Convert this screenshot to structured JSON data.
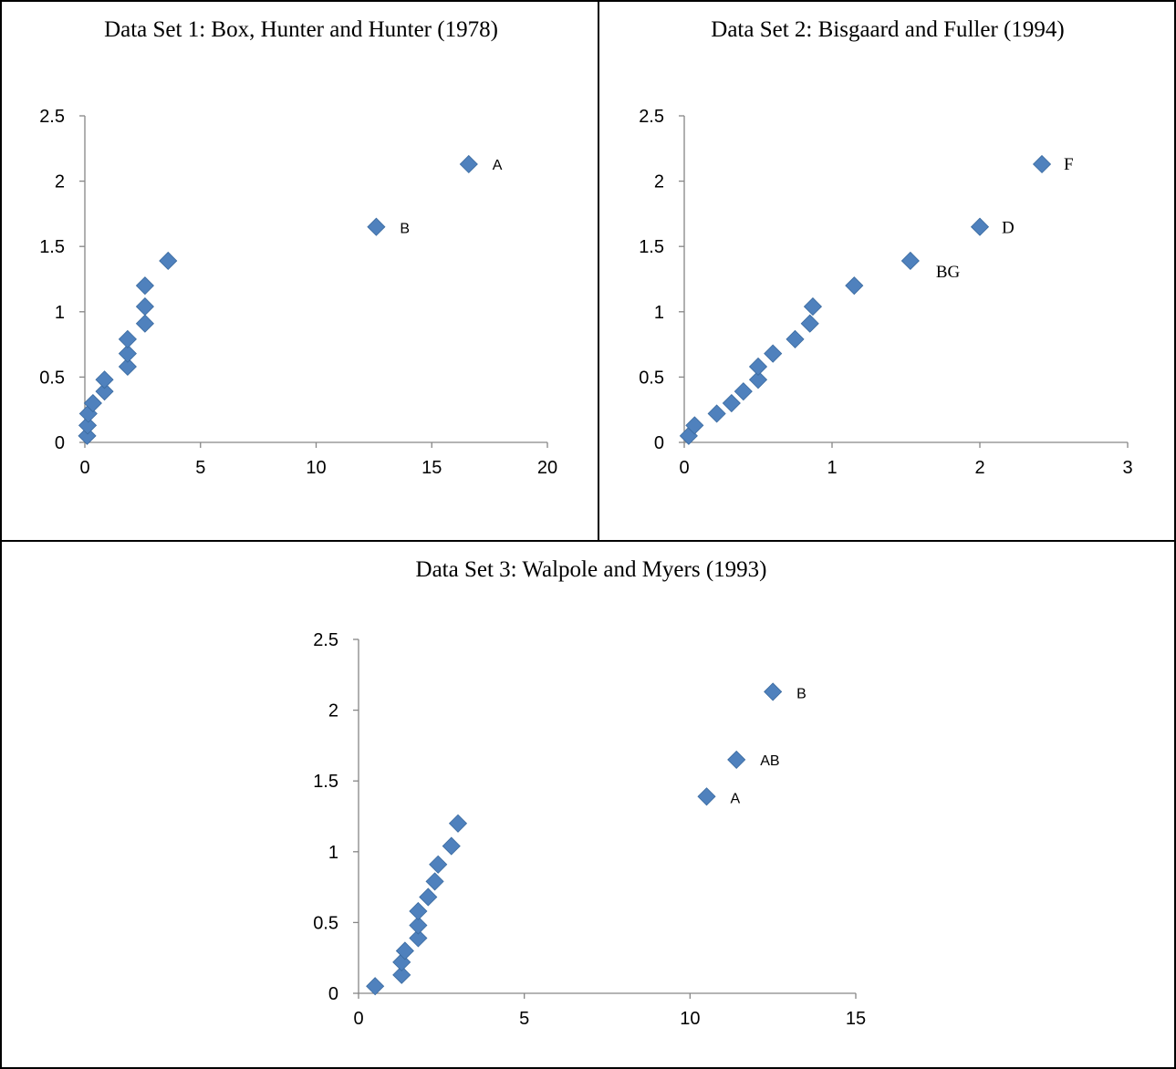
{
  "colors": {
    "marker": "#4F81BD",
    "marker_edge": "#3A6A9F",
    "axis": "#868686",
    "border": "#000000"
  },
  "chart_data": [
    {
      "type": "scatter",
      "title": "Data Set 1: Box, Hunter and Hunter (1978)",
      "xlabel": "",
      "ylabel": "",
      "xlim": [
        0,
        20
      ],
      "ylim": [
        0,
        2.5
      ],
      "x_ticks": [
        "0",
        "5",
        "10",
        "15",
        "20"
      ],
      "y_ticks": [
        "0",
        "0.5",
        "1",
        "1.5",
        "2",
        "2.5"
      ],
      "label_style": "sans",
      "points": [
        {
          "x": 0.1,
          "y": 0.05,
          "label": ""
        },
        {
          "x": 0.12,
          "y": 0.13,
          "label": ""
        },
        {
          "x": 0.15,
          "y": 0.22,
          "label": ""
        },
        {
          "x": 0.35,
          "y": 0.3,
          "label": ""
        },
        {
          "x": 0.85,
          "y": 0.39,
          "label": ""
        },
        {
          "x": 0.85,
          "y": 0.48,
          "label": ""
        },
        {
          "x": 1.85,
          "y": 0.58,
          "label": ""
        },
        {
          "x": 1.85,
          "y": 0.68,
          "label": ""
        },
        {
          "x": 1.85,
          "y": 0.79,
          "label": ""
        },
        {
          "x": 2.6,
          "y": 0.91,
          "label": ""
        },
        {
          "x": 2.6,
          "y": 1.04,
          "label": ""
        },
        {
          "x": 2.6,
          "y": 1.2,
          "label": ""
        },
        {
          "x": 3.6,
          "y": 1.39,
          "label": ""
        },
        {
          "x": 12.6,
          "y": 1.65,
          "label": "B"
        },
        {
          "x": 16.6,
          "y": 2.13,
          "label": "A"
        }
      ]
    },
    {
      "type": "scatter",
      "title": "Data Set 2: Bisgaard and Fuller (1994)",
      "xlabel": "",
      "ylabel": "",
      "xlim": [
        0,
        3
      ],
      "ylim": [
        0,
        2.5
      ],
      "x_ticks": [
        "0",
        "1",
        "2",
        "3"
      ],
      "y_ticks": [
        "0",
        "0.5",
        "1",
        "1.5",
        "2",
        "2.5"
      ],
      "label_style": "serif",
      "points": [
        {
          "x": 0.03,
          "y": 0.05,
          "label": ""
        },
        {
          "x": 0.07,
          "y": 0.13,
          "label": ""
        },
        {
          "x": 0.22,
          "y": 0.22,
          "label": ""
        },
        {
          "x": 0.32,
          "y": 0.3,
          "label": ""
        },
        {
          "x": 0.4,
          "y": 0.39,
          "label": ""
        },
        {
          "x": 0.5,
          "y": 0.48,
          "label": ""
        },
        {
          "x": 0.5,
          "y": 0.58,
          "label": ""
        },
        {
          "x": 0.6,
          "y": 0.68,
          "label": ""
        },
        {
          "x": 0.75,
          "y": 0.79,
          "label": ""
        },
        {
          "x": 0.85,
          "y": 0.91,
          "label": ""
        },
        {
          "x": 0.87,
          "y": 1.04,
          "label": ""
        },
        {
          "x": 1.15,
          "y": 1.2,
          "label": ""
        },
        {
          "x": 1.53,
          "y": 1.39,
          "label": "BG"
        },
        {
          "x": 2.0,
          "y": 1.65,
          "label": "D"
        },
        {
          "x": 2.42,
          "y": 2.13,
          "label": "F"
        }
      ]
    },
    {
      "type": "scatter",
      "title": "Data Set 3: Walpole and Myers (1993)",
      "xlabel": "",
      "ylabel": "",
      "xlim": [
        0,
        15
      ],
      "ylim": [
        0,
        2.5
      ],
      "x_ticks": [
        "0",
        "5",
        "10",
        "15"
      ],
      "y_ticks": [
        "0",
        "0.5",
        "1",
        "1.5",
        "2",
        "2.5"
      ],
      "label_style": "sans",
      "points": [
        {
          "x": 0.5,
          "y": 0.05,
          "label": ""
        },
        {
          "x": 1.3,
          "y": 0.13,
          "label": ""
        },
        {
          "x": 1.3,
          "y": 0.22,
          "label": ""
        },
        {
          "x": 1.4,
          "y": 0.3,
          "label": ""
        },
        {
          "x": 1.8,
          "y": 0.39,
          "label": ""
        },
        {
          "x": 1.8,
          "y": 0.48,
          "label": ""
        },
        {
          "x": 1.8,
          "y": 0.58,
          "label": ""
        },
        {
          "x": 2.1,
          "y": 0.68,
          "label": ""
        },
        {
          "x": 2.3,
          "y": 0.79,
          "label": ""
        },
        {
          "x": 2.4,
          "y": 0.91,
          "label": ""
        },
        {
          "x": 2.8,
          "y": 1.04,
          "label": ""
        },
        {
          "x": 3.0,
          "y": 1.2,
          "label": ""
        },
        {
          "x": 10.5,
          "y": 1.39,
          "label": "A"
        },
        {
          "x": 11.4,
          "y": 1.65,
          "label": "AB"
        },
        {
          "x": 12.5,
          "y": 2.13,
          "label": "B"
        }
      ]
    }
  ]
}
